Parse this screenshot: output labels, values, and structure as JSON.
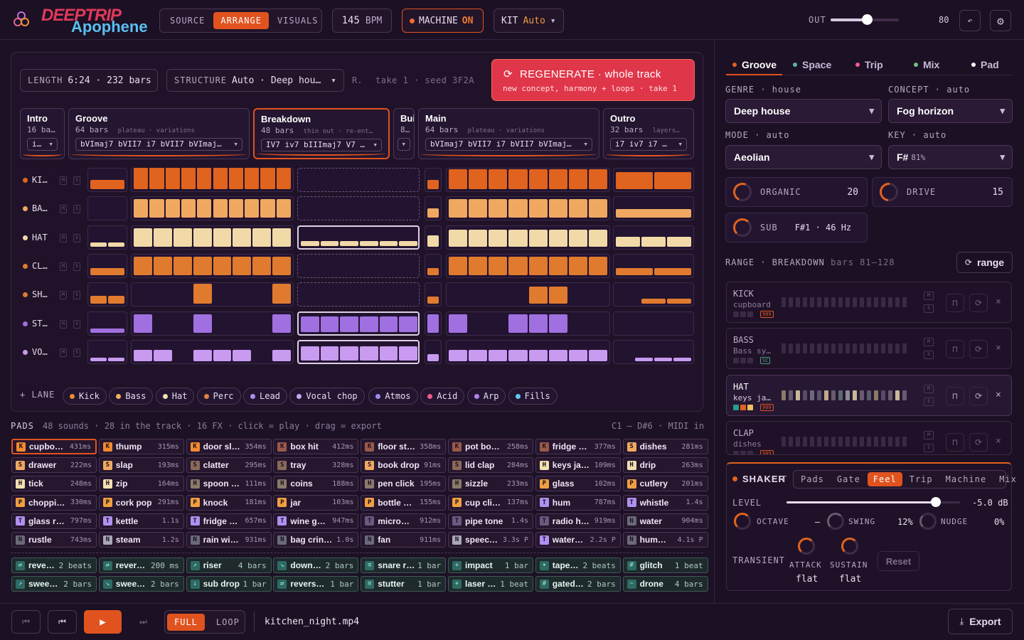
{
  "app": {
    "logo_top": "DEEPTRIP",
    "logo_bottom": "Apophene"
  },
  "topbar": {
    "tabs": [
      "SOURCE",
      "ARRANGE",
      "VISUALS"
    ],
    "active_tab": "ARRANGE",
    "bpm_value": "145",
    "bpm_unit": "BPM",
    "machine_label": "MACHINE",
    "machine_state": "ON",
    "kit_label": "KIT",
    "kit_value": "Auto",
    "out_label": "OUT",
    "out_value": "80"
  },
  "arrange": {
    "length_label": "LENGTH",
    "length_value": "6:24 · 232 bars",
    "structure_label": "STRUCTURE",
    "structure_value": "Auto · Deep hou…",
    "r_label": "R.",
    "take_label": "take 1 · seed 3F2A",
    "regen_title": "REGENERATE · whole track",
    "regen_sub": "new concept, harmony + loops · take 1",
    "sections": [
      {
        "name": "Intro",
        "bars": "16 ba…",
        "tags": "",
        "chords": "i…"
      },
      {
        "name": "Groove",
        "bars": "64 bars",
        "tags": "plateau · variations",
        "chords": "bVImaj7 bVII7 i7 bVII7 bVImaj…"
      },
      {
        "name": "Breakdown",
        "bars": "48 bars",
        "tags": "thin out · re-ent…",
        "chords": "IV7 iv7 bIIImaj7 V7 …"
      },
      {
        "name": "Buil",
        "bars": "8…",
        "tags": "",
        "chords": ""
      },
      {
        "name": "Main",
        "bars": "64 bars",
        "tags": "plateau · variations",
        "chords": "bVImaj7 bVII7 i7 bVII7 bVImaj…"
      },
      {
        "name": "Outro",
        "bars": "32 bars",
        "tags": "layers…",
        "chords": "i7 iv7 i7 …"
      }
    ],
    "lanes": [
      {
        "label": "KI…",
        "color": "#e0631f"
      },
      {
        "label": "BA…",
        "color": "#f0a860"
      },
      {
        "label": "HAT",
        "color": "#f2d9a8"
      },
      {
        "label": "CL…",
        "color": "#e07a2f"
      },
      {
        "label": "SH…",
        "color": "#e07a2f"
      },
      {
        "label": "ST…",
        "color": "#a070e0"
      },
      {
        "label": "VO…",
        "color": "#c89af0"
      }
    ],
    "ms": [
      "M",
      "S"
    ],
    "add_lane_label": "+ LANE",
    "lane_chips": [
      {
        "label": "Kick",
        "color": "#f08a2f"
      },
      {
        "label": "Bass",
        "color": "#f0b060"
      },
      {
        "label": "Hat",
        "color": "#f2e0b0"
      },
      {
        "label": "Perc",
        "color": "#e08040"
      },
      {
        "label": "Lead",
        "color": "#b090f0"
      },
      {
        "label": "Vocal chop",
        "color": "#c8a8f0"
      },
      {
        "label": "Atmos",
        "color": "#9f8af0"
      },
      {
        "label": "Acid",
        "color": "#f05a90"
      },
      {
        "label": "Arp",
        "color": "#b080f0"
      },
      {
        "label": "Fills",
        "color": "#60c8f0"
      }
    ]
  },
  "pads": {
    "title": "PADS",
    "summary": "48 sounds · 28 in the track · 16 FX · click = play · drag = export",
    "range": "C1 – D#6 · MIDI in",
    "items": [
      {
        "badge": "K",
        "name": "cupbo…",
        "dur": "431ms",
        "c": "#f08a2f"
      },
      {
        "badge": "K",
        "name": "thump",
        "dur": "315ms",
        "c": "#f08a2f"
      },
      {
        "badge": "K",
        "name": "door sl…",
        "dur": "354ms",
        "c": "#f08a2f"
      },
      {
        "badge": "K",
        "name": "box hit",
        "dur": "412ms",
        "c": "#9a5a48"
      },
      {
        "badge": "K",
        "name": "floor st…",
        "dur": "358ms",
        "c": "#9a5a48"
      },
      {
        "badge": "K",
        "name": "pot bo…",
        "dur": "258ms",
        "c": "#9a5a48"
      },
      {
        "badge": "K",
        "name": "fridge …",
        "dur": "377ms",
        "c": "#9a5a48"
      },
      {
        "badge": "S",
        "name": "dishes",
        "dur": "281ms",
        "c": "#f0a860"
      },
      {
        "badge": "S",
        "name": "drawer",
        "dur": "222ms",
        "c": "#f0a860"
      },
      {
        "badge": "S",
        "name": "slap",
        "dur": "193ms",
        "c": "#f0a860"
      },
      {
        "badge": "S",
        "name": "clatter",
        "dur": "295ms",
        "c": "#8a6a58"
      },
      {
        "badge": "S",
        "name": "tray",
        "dur": "328ms",
        "c": "#8a6a58"
      },
      {
        "badge": "S",
        "name": "book drop",
        "dur": "91ms",
        "c": "#f0a860"
      },
      {
        "badge": "S",
        "name": "lid clap",
        "dur": "284ms",
        "c": "#8a6a58"
      },
      {
        "badge": "H",
        "name": "keys ja…",
        "dur": "109ms",
        "c": "#f2e0b0"
      },
      {
        "badge": "H",
        "name": "drip",
        "dur": "263ms",
        "c": "#f2e0b0"
      },
      {
        "badge": "H",
        "name": "tick",
        "dur": "248ms",
        "c": "#f2e0b0"
      },
      {
        "badge": "H",
        "name": "zip",
        "dur": "164ms",
        "c": "#f2e0b0"
      },
      {
        "badge": "H",
        "name": "spoon …",
        "dur": "111ms",
        "c": "#8a7a6a"
      },
      {
        "badge": "H",
        "name": "coins",
        "dur": "188ms",
        "c": "#8a7a6a"
      },
      {
        "badge": "H",
        "name": "pen click",
        "dur": "195ms",
        "c": "#8a7a6a"
      },
      {
        "badge": "H",
        "name": "sizzle",
        "dur": "233ms",
        "c": "#8a7a6a"
      },
      {
        "badge": "P",
        "name": "glass",
        "dur": "102ms",
        "c": "#f0a040"
      },
      {
        "badge": "P",
        "name": "cutlery",
        "dur": "201ms",
        "c": "#f0a040"
      },
      {
        "badge": "P",
        "name": "choppi…",
        "dur": "330ms",
        "c": "#f0a040"
      },
      {
        "badge": "P",
        "name": "cork pop",
        "dur": "291ms",
        "c": "#f0a040"
      },
      {
        "badge": "P",
        "name": "knock",
        "dur": "181ms",
        "c": "#f0a040"
      },
      {
        "badge": "P",
        "name": "jar",
        "dur": "103ms",
        "c": "#f0a040"
      },
      {
        "badge": "P",
        "name": "bottle …",
        "dur": "155ms",
        "c": "#f0a040"
      },
      {
        "badge": "P",
        "name": "cup cli…",
        "dur": "137ms",
        "c": "#f0a040"
      },
      {
        "badge": "T",
        "name": "hum",
        "dur": "787ms",
        "c": "#b090f0"
      },
      {
        "badge": "T",
        "name": "whistle",
        "dur": "1.4s",
        "c": "#b090f0"
      },
      {
        "badge": "T",
        "name": "glass r…",
        "dur": "797ms",
        "c": "#b090f0"
      },
      {
        "badge": "T",
        "name": "kettle",
        "dur": "1.1s",
        "c": "#b090f0"
      },
      {
        "badge": "T",
        "name": "fridge …",
        "dur": "657ms",
        "c": "#b090f0"
      },
      {
        "badge": "T",
        "name": "wine g…",
        "dur": "947ms",
        "c": "#b090f0"
      },
      {
        "badge": "T",
        "name": "micro…",
        "dur": "912ms",
        "c": "#6a5a80"
      },
      {
        "badge": "T",
        "name": "pipe tone",
        "dur": "1.4s",
        "c": "#6a5a80"
      },
      {
        "badge": "T",
        "name": "radio h…",
        "dur": "919ms",
        "c": "#6a5a80"
      },
      {
        "badge": "N",
        "name": "water",
        "dur": "904ms",
        "c": "#6a6a78"
      },
      {
        "badge": "N",
        "name": "rustle",
        "dur": "743ms",
        "c": "#6a6a78"
      },
      {
        "badge": "N",
        "name": "steam",
        "dur": "1.2s",
        "c": "#a8a8b8"
      },
      {
        "badge": "N",
        "name": "rain wi…",
        "dur": "931ms",
        "c": "#6a6a78"
      },
      {
        "badge": "N",
        "name": "bag crin…",
        "dur": "1.0s",
        "c": "#6a6a78"
      },
      {
        "badge": "N",
        "name": "fan",
        "dur": "911ms",
        "c": "#6a6a78"
      },
      {
        "badge": "N",
        "name": "speec…",
        "dur": "3.3s P",
        "c": "#a8a8b8"
      },
      {
        "badge": "T",
        "name": "water…",
        "dur": "2.2s P",
        "c": "#b090f0"
      },
      {
        "badge": "N",
        "name": "hum…",
        "dur": "4.1s P",
        "c": "#6a6a78"
      }
    ],
    "fx": [
      {
        "icon": "⇄",
        "name": "reve…",
        "dur": "2 beats"
      },
      {
        "icon": "⇄",
        "name": "rever…",
        "dur": "200 ms"
      },
      {
        "icon": "↗",
        "name": "riser",
        "dur": "4 bars"
      },
      {
        "icon": "↘",
        "name": "down…",
        "dur": "2 bars"
      },
      {
        "icon": "≡",
        "name": "snare r…",
        "dur": "1 bar"
      },
      {
        "icon": "+",
        "name": "impact",
        "dur": "1 bar"
      },
      {
        "icon": "▾",
        "name": "tape…",
        "dur": "2 beats"
      },
      {
        "icon": "#",
        "name": "glitch",
        "dur": "1 beat"
      },
      {
        "icon": "↗",
        "name": "swee…",
        "dur": "2 bars"
      },
      {
        "icon": "↘",
        "name": "swee…",
        "dur": "2 bars"
      },
      {
        "icon": "↓",
        "name": "sub drop",
        "dur": "1 bar"
      },
      {
        "icon": "⇄",
        "name": "revers…",
        "dur": "1 bar"
      },
      {
        "icon": "≡",
        "name": "stutter",
        "dur": "1 bar"
      },
      {
        "icon": "+",
        "name": "laser …",
        "dur": "1 beat"
      },
      {
        "icon": "#",
        "name": "gated…",
        "dur": "2 bars"
      },
      {
        "icon": "~",
        "name": "drone",
        "dur": "4 bars"
      }
    ]
  },
  "transport": {
    "mode_full": "FULL",
    "mode_loop": "LOOP",
    "file": "kitchen_night.mp4",
    "export": "Export"
  },
  "right": {
    "tabs": [
      {
        "label": "Groove",
        "color": "#e0631f"
      },
      {
        "label": "Space",
        "color": "#60b0b0"
      },
      {
        "label": "Trip",
        "color": "#f05a90"
      },
      {
        "label": "Mix",
        "color": "#70c080"
      },
      {
        "label": "Pad",
        "color": "#ffffff"
      }
    ],
    "genre_label": "GENRE · house",
    "genre_value": "Deep house",
    "concept_label": "CONCEPT · auto",
    "concept_value": "Fog horizon",
    "mode_label": "MODE · auto",
    "mode_value": "Aeolian",
    "key_label": "KEY · auto",
    "key_value": "F#",
    "key_conf": "81%",
    "organic_label": "ORGANIC",
    "organic_value": "20",
    "drive_label": "DRIVE",
    "drive_value": "15",
    "sub_label": "SUB",
    "sub_value": "F#1 · 46 Hz",
    "range_label": "RANGE · BREAKDOWN",
    "range_bars": "bars 81–128",
    "range_button": "range",
    "tracks": [
      {
        "name": "KICK",
        "src": "cupboard",
        "badge": "909"
      },
      {
        "name": "BASS",
        "src": "Bass sy…",
        "badge": "SC"
      },
      {
        "name": "HAT",
        "src": "keys ja…",
        "badge": "909"
      },
      {
        "name": "CLAP",
        "src": "dishes",
        "badge": "909"
      }
    ],
    "shaker": {
      "name": "SHAKER",
      "tag": "T",
      "tabs": [
        "Pads",
        "Gate",
        "Feel",
        "Trip",
        "Machine",
        "Mix"
      ],
      "active": "Feel",
      "level_label": "LEVEL",
      "level_value": "-5.0 dB",
      "level_frac": 0.86,
      "octave_label": "OCTAVE",
      "octave_value": "–",
      "swing_label": "SWING",
      "swing_value": "12%",
      "nudge_label": "NUDGE",
      "nudge_value": "0%",
      "transient_label": "TRANSIENT",
      "attack_label": "ATTACK",
      "attack_value": "flat",
      "sustain_label": "SUSTAIN",
      "sustain_value": "flat",
      "reset": "Reset"
    }
  }
}
